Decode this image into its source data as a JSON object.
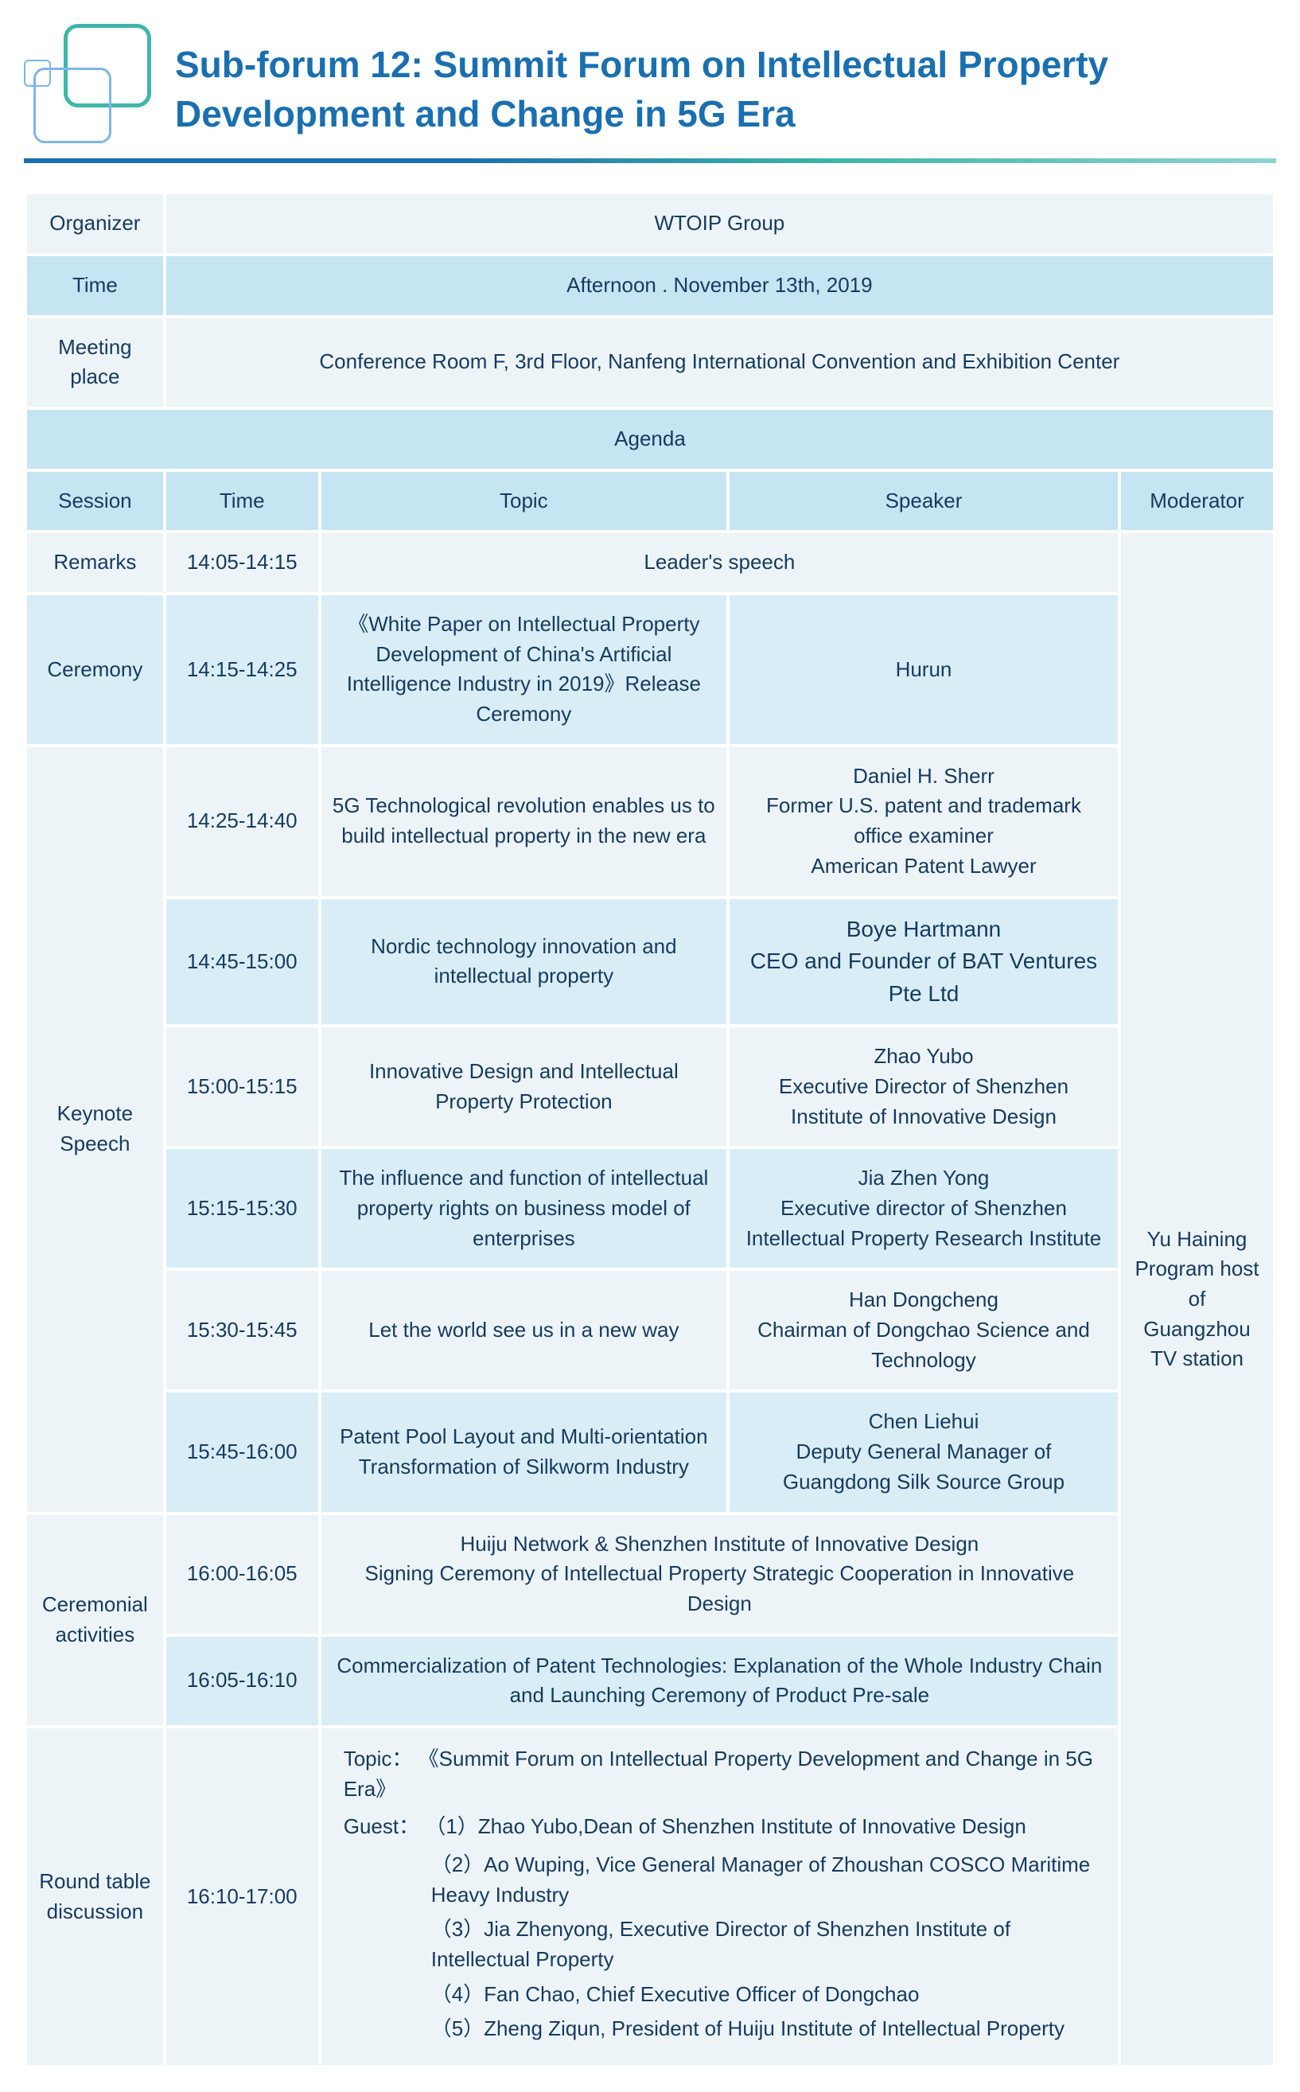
{
  "title": "Sub-forum 12: Summit Forum on Intellectual Property Development and Change in 5G Era",
  "info": {
    "organizer_label": "Organizer",
    "organizer_value": "WTOIP Group",
    "time_label": "Time",
    "time_value": "Afternoon . November 13th, 2019",
    "place_label": "Meeting place",
    "place_value": "Conference Room F, 3rd Floor, Nanfeng International Convention and Exhibition Center"
  },
  "agenda_label": "Agenda",
  "columns": {
    "session": "Session",
    "time": "Time",
    "topic": "Topic",
    "speaker": "Speaker",
    "moderator": "Moderator"
  },
  "moderator": "Yu Haining\nProgram host of Guangzhou TV station",
  "rows": {
    "remarks": {
      "session": "Remarks",
      "time": "14:05-14:15",
      "topic": "Leader's speech"
    },
    "ceremony": {
      "session": "Ceremony",
      "time": "14:15-14:25",
      "topic": "《White Paper on Intellectual Property Development of China's Artificial Intelligence Industry in 2019》Release Ceremony",
      "speaker": "Hurun"
    },
    "keynote_label": "Keynote Speech",
    "k1": {
      "time": "14:25-14:40",
      "topic": "5G Technological revolution enables us to build intellectual property in the new era",
      "speaker": "Daniel H. Sherr\nFormer U.S. patent and trademark office examiner\nAmerican Patent Lawyer"
    },
    "k2": {
      "time": "14:45-15:00",
      "topic": "Nordic technology innovation and intellectual property",
      "speaker": "Boye Hartmann\nCEO and Founder of BAT Ventures Pte Ltd"
    },
    "k3": {
      "time": "15:00-15:15",
      "topic": "Innovative Design and Intellectual Property Protection",
      "speaker": "Zhao Yubo\nExecutive Director of Shenzhen Institute of Innovative Design"
    },
    "k4": {
      "time": "15:15-15:30",
      "topic": "The influence and function of intellectual property rights on business model of enterprises",
      "speaker": "Jia Zhen Yong\nExecutive director of Shenzhen Intellectual Property Research Institute"
    },
    "k5": {
      "time": "15:30-15:45",
      "topic": "Let the world see us in a new way",
      "speaker": "Han Dongcheng\nChairman of Dongchao Science and Technology"
    },
    "k6": {
      "time": "15:45-16:00",
      "topic": "Patent Pool Layout and Multi-orientation Transformation of Silkworm Industry",
      "speaker": "Chen Liehui\nDeputy General Manager of Guangdong Silk Source Group"
    },
    "cer_label": "Ceremonial activities",
    "c1": {
      "time": "16:00-16:05",
      "topic": "Huiju Network & Shenzhen Institute of Innovative Design\nSigning Ceremony of Intellectual Property Strategic Cooperation in Innovative Design"
    },
    "c2": {
      "time": "16:05-16:10",
      "topic": "Commercialization of Patent Technologies: Explanation of the Whole Industry Chain and Launching Ceremony of Product Pre-sale"
    },
    "rt": {
      "session": "Round table discussion",
      "time": "16:10-17:00",
      "topic_label": "Topic：",
      "topic_value": "《Summit Forum on Intellectual Property Development and Change in 5G Era》",
      "guest_label": "Guest：",
      "guests": [
        "（1）Zhao Yubo,Dean of Shenzhen Institute of Innovative Design",
        "（2）Ao Wuping, Vice General Manager of Zhoushan COSCO Maritime Heavy Industry",
        "（3）Jia Zhenyong, Executive Director of Shenzhen Institute of Intellectual Property",
        "（4）Fan Chao, Chief Executive Officer of Dongchao",
        "（5）Zheng Ziqun, President of Huiju Institute of Intellectual Property"
      ]
    }
  },
  "colors": {
    "title": "#1a6fb0",
    "bg_light": "#edf4f8",
    "bg_head": "#c6e5f2",
    "bg_mid": "#d9edf6",
    "text": "#163a5f"
  }
}
